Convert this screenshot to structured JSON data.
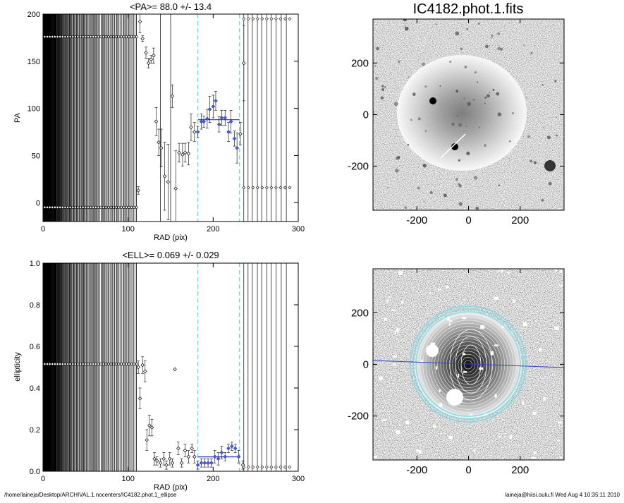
{
  "footer": {
    "path": "/home/laineja/Desktop/ARCHIVAL.1.nocenters/IC4182.phot.1_ellipse",
    "stamp": "laineja@hiisi.oulu.fi  Wed Aug  4 10:35:11 2010"
  },
  "image_panels": {
    "title": "IC4182.phot.1.fits",
    "x_ticks": [
      "-200",
      "0",
      "200"
    ],
    "y_ticks": [
      "200",
      "0",
      "-200"
    ]
  },
  "chart_data": [
    {
      "type": "scatter",
      "title": "<PA>=  88.0 +/-  13.4",
      "xlabel": "RAD (pix)",
      "ylabel": "PA",
      "xlim": [
        0,
        300
      ],
      "ylim": [
        -20,
        200
      ],
      "xticks": [
        0,
        100,
        200,
        300
      ],
      "yticks": [
        0,
        50,
        100,
        150,
        200
      ],
      "fit_range": [
        182,
        231
      ],
      "mean_value": 88.0,
      "points": [
        {
          "x": 112,
          "y": 13,
          "err": 4
        },
        {
          "x": 114,
          "y": 192,
          "err": 12
        },
        {
          "x": 117,
          "y": 174,
          "err": 3
        },
        {
          "x": 121,
          "y": 159,
          "err": 6
        },
        {
          "x": 124,
          "y": 148,
          "err": 5
        },
        {
          "x": 127,
          "y": 152,
          "err": 4
        },
        {
          "x": 130,
          "y": 156,
          "err": 8
        },
        {
          "x": 133,
          "y": 86,
          "err": 15
        },
        {
          "x": 136,
          "y": 64,
          "err": 14
        },
        {
          "x": 139,
          "y": 58,
          "err": 20
        },
        {
          "x": 143,
          "y": 28,
          "err": 36
        },
        {
          "x": 147,
          "y": 22,
          "err": 40
        },
        {
          "x": 152,
          "y": 113,
          "err": 12
        },
        {
          "x": 156,
          "y": 15,
          "err": 40
        },
        {
          "x": 160,
          "y": 53,
          "err": 10
        },
        {
          "x": 164,
          "y": 51,
          "err": 12
        },
        {
          "x": 167,
          "y": 53,
          "err": 10
        },
        {
          "x": 171,
          "y": 52,
          "err": 12
        },
        {
          "x": 174,
          "y": 80,
          "err": 14
        },
        {
          "x": 178,
          "y": 75,
          "err": 10
        },
        {
          "x": 182,
          "y": 75,
          "err": 6
        },
        {
          "x": 186,
          "y": 86,
          "err": 8
        },
        {
          "x": 189,
          "y": 86,
          "err": 6
        },
        {
          "x": 193,
          "y": 89,
          "err": 10
        },
        {
          "x": 196,
          "y": 99,
          "err": 14
        },
        {
          "x": 200,
          "y": 102,
          "err": 12
        },
        {
          "x": 203,
          "y": 108,
          "err": 10
        },
        {
          "x": 207,
          "y": 83,
          "err": 8
        },
        {
          "x": 210,
          "y": 90,
          "err": 8
        },
        {
          "x": 214,
          "y": 90,
          "err": 8
        },
        {
          "x": 218,
          "y": 75,
          "err": 10
        },
        {
          "x": 221,
          "y": 86,
          "err": 12
        },
        {
          "x": 225,
          "y": 68,
          "err": 8
        },
        {
          "x": 228,
          "y": 58,
          "err": 16
        },
        {
          "x": 232,
          "y": 73,
          "err": 12
        },
        {
          "x": 236,
          "y": 148,
          "err": 40
        }
      ]
    },
    {
      "type": "scatter",
      "title": "<ELL>= 0.069 +/-  0.029",
      "xlabel": "RAD (pix)",
      "ylabel": "ellipticity",
      "xlim": [
        0,
        300
      ],
      "ylim": [
        0,
        1.0
      ],
      "xticks": [
        0,
        100,
        200,
        300
      ],
      "yticks": [
        0.0,
        0.2,
        0.4,
        0.6,
        0.8,
        1.0
      ],
      "fit_range": [
        182,
        231
      ],
      "mean_value": 0.069,
      "points": [
        {
          "x": 112,
          "y": 0.5,
          "err": 0.03
        },
        {
          "x": 114,
          "y": 0.35,
          "err": 0.05
        },
        {
          "x": 117,
          "y": 0.51,
          "err": 0.04
        },
        {
          "x": 120,
          "y": 0.48,
          "err": 0.05
        },
        {
          "x": 122,
          "y": 0.15,
          "err": 0.05
        },
        {
          "x": 125,
          "y": 0.22,
          "err": 0.05
        },
        {
          "x": 128,
          "y": 0.21,
          "err": 0.04
        },
        {
          "x": 131,
          "y": 0.06,
          "err": 0.03
        },
        {
          "x": 134,
          "y": 0.05,
          "err": 0.02
        },
        {
          "x": 138,
          "y": 0.04,
          "err": 0.02
        },
        {
          "x": 142,
          "y": 0.06,
          "err": 0.03
        },
        {
          "x": 145,
          "y": 0.03,
          "err": 0.02
        },
        {
          "x": 149,
          "y": 0.06,
          "err": 0.03
        },
        {
          "x": 152,
          "y": 0.04,
          "err": 0.02
        },
        {
          "x": 155,
          "y": 0.49,
          "err": 0.0
        },
        {
          "x": 159,
          "y": 0.11,
          "err": 0.03
        },
        {
          "x": 163,
          "y": 0.04,
          "err": 0.02
        },
        {
          "x": 167,
          "y": 0.1,
          "err": 0.03
        },
        {
          "x": 171,
          "y": 0.07,
          "err": 0.03
        },
        {
          "x": 175,
          "y": 0.11,
          "err": 0.02
        },
        {
          "x": 178,
          "y": 0.07,
          "err": 0.03
        },
        {
          "x": 182,
          "y": 0.03,
          "err": 0.02
        },
        {
          "x": 186,
          "y": 0.04,
          "err": 0.02
        },
        {
          "x": 190,
          "y": 0.04,
          "err": 0.02
        },
        {
          "x": 194,
          "y": 0.04,
          "err": 0.02
        },
        {
          "x": 198,
          "y": 0.04,
          "err": 0.02
        },
        {
          "x": 202,
          "y": 0.07,
          "err": 0.03
        },
        {
          "x": 206,
          "y": 0.06,
          "err": 0.03
        },
        {
          "x": 210,
          "y": 0.09,
          "err": 0.03
        },
        {
          "x": 214,
          "y": 0.07,
          "err": 0.02
        },
        {
          "x": 218,
          "y": 0.11,
          "err": 0.02
        },
        {
          "x": 222,
          "y": 0.12,
          "err": 0.02
        },
        {
          "x": 226,
          "y": 0.11,
          "err": 0.02
        },
        {
          "x": 230,
          "y": 0.07,
          "err": 0.03
        },
        {
          "x": 235,
          "y": 0.03,
          "err": 0.02
        }
      ]
    }
  ]
}
